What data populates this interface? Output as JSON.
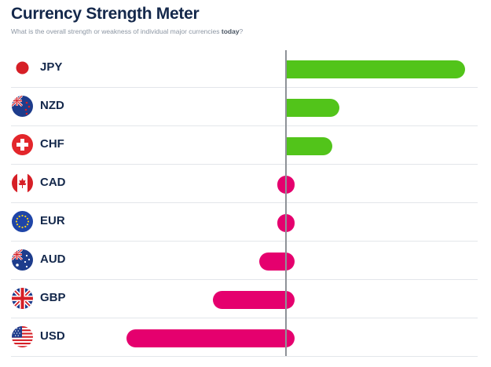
{
  "header": {
    "title": "Currency Strength Meter",
    "subtitle_main": "What is the overall strength or weakness of individual major currencies ",
    "subtitle_emph": "today",
    "subtitle_end": "?"
  },
  "colors": {
    "positive": "#52c41a",
    "negative": "#e5006e",
    "axis": "#8e9298"
  },
  "chart_data": {
    "type": "bar",
    "orientation": "horizontal",
    "categories": [
      "JPY",
      "NZD",
      "CHF",
      "CAD",
      "EUR",
      "AUD",
      "GBP",
      "USD"
    ],
    "values": [
      100,
      30,
      26,
      -5,
      -5,
      -15,
      -41,
      -89
    ],
    "xlim": [
      -100,
      110
    ],
    "baseline": 0,
    "grid": false,
    "legend": "none"
  },
  "rows": [
    {
      "code": "JPY",
      "flag": "japan-flag-icon"
    },
    {
      "code": "NZD",
      "flag": "new-zealand-flag-icon"
    },
    {
      "code": "CHF",
      "flag": "switzerland-flag-icon"
    },
    {
      "code": "CAD",
      "flag": "canada-flag-icon"
    },
    {
      "code": "EUR",
      "flag": "eu-flag-icon"
    },
    {
      "code": "AUD",
      "flag": "australia-flag-icon"
    },
    {
      "code": "GBP",
      "flag": "uk-flag-icon"
    },
    {
      "code": "USD",
      "flag": "usa-flag-icon"
    }
  ]
}
